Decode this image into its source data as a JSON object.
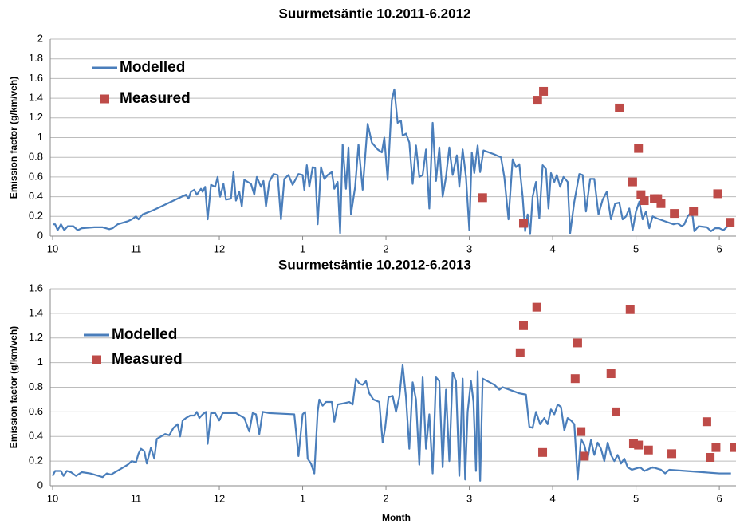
{
  "chart_data": [
    {
      "type": "line",
      "title": "Suurmetsäntie 10.2011-6.2012",
      "y_label": "Emission factor (g/km/veh)",
      "xlim": [
        0,
        8.2
      ],
      "xticks": [
        {
          "value": 0,
          "label": "10"
        },
        {
          "value": 1,
          "label": "11"
        },
        {
          "value": 2,
          "label": "12"
        },
        {
          "value": 3,
          "label": "1"
        },
        {
          "value": 4,
          "label": "2"
        },
        {
          "value": 5,
          "label": "3"
        },
        {
          "value": 6,
          "label": "4"
        },
        {
          "value": 7,
          "label": "5"
        },
        {
          "value": 8,
          "label": "6"
        }
      ],
      "ylim": [
        0,
        2
      ],
      "yticks": [
        0,
        0.2,
        0.4,
        0.6,
        0.8,
        1,
        1.2,
        1.4,
        1.6,
        1.8,
        2
      ],
      "grid": true,
      "legend": "upper left",
      "series": [
        {
          "name": "Modelled",
          "style": "line",
          "color": "#4a7ebb",
          "x": [
            0,
            0.03,
            0.06,
            0.1,
            0.14,
            0.18,
            0.25,
            0.3,
            0.35,
            0.5,
            0.6,
            0.68,
            0.72,
            0.78,
            0.9,
            0.95,
            1.0,
            1.03,
            1.08,
            1.2,
            1.3,
            1.45,
            1.6,
            1.63,
            1.66,
            1.7,
            1.73,
            1.78,
            1.8,
            1.83,
            1.86,
            1.9,
            1.95,
            1.98,
            2.01,
            2.05,
            2.08,
            2.14,
            2.17,
            2.2,
            2.24,
            2.27,
            2.3,
            2.38,
            2.42,
            2.45,
            2.5,
            2.53,
            2.56,
            2.6,
            2.65,
            2.7,
            2.74,
            2.78,
            2.83,
            2.88,
            2.95,
            3.0,
            3.02,
            3.05,
            3.08,
            3.12,
            3.15,
            3.18,
            3.22,
            3.26,
            3.3,
            3.35,
            3.38,
            3.42,
            3.45,
            3.48,
            3.52,
            3.55,
            3.58,
            3.63,
            3.67,
            3.72,
            3.78,
            3.83,
            3.9,
            3.95,
            3.98,
            4.02,
            4.07,
            4.1,
            4.14,
            4.18,
            4.2,
            4.24,
            4.28,
            4.32,
            4.36,
            4.4,
            4.44,
            4.48,
            4.52,
            4.56,
            4.6,
            4.64,
            4.68,
            4.72,
            4.76,
            4.8,
            4.85,
            4.88,
            4.92,
            4.96,
            5.0,
            5.03,
            5.06,
            5.1,
            5.13,
            5.17,
            5.3,
            5.38,
            5.42,
            5.47,
            5.52,
            5.56,
            5.6,
            5.64,
            5.67,
            5.7,
            5.73,
            5.76,
            5.8,
            5.84,
            5.88,
            5.92,
            5.95,
            5.98,
            6.02,
            6.05,
            6.09,
            6.13,
            6.18,
            6.21,
            6.26,
            6.32,
            6.36,
            6.4,
            6.45,
            6.5,
            6.55,
            6.6,
            6.65,
            6.7,
            6.75,
            6.8,
            6.84,
            6.88,
            6.92,
            6.96,
            7.0,
            7.04,
            7.08,
            7.12,
            7.16,
            7.2,
            7.25,
            7.35,
            7.45,
            7.5,
            7.55,
            7.58,
            7.62,
            7.65,
            7.68,
            7.7,
            7.75,
            7.85,
            7.9,
            7.95,
            8.0,
            8.05,
            8.1
          ],
          "values": [
            0.12,
            0.12,
            0.06,
            0.12,
            0.06,
            0.1,
            0.1,
            0.06,
            0.08,
            0.09,
            0.09,
            0.07,
            0.08,
            0.12,
            0.15,
            0.17,
            0.2,
            0.17,
            0.22,
            0.26,
            0.3,
            0.36,
            0.42,
            0.38,
            0.45,
            0.47,
            0.42,
            0.48,
            0.45,
            0.5,
            0.17,
            0.52,
            0.5,
            0.6,
            0.4,
            0.53,
            0.37,
            0.38,
            0.65,
            0.36,
            0.45,
            0.3,
            0.57,
            0.53,
            0.42,
            0.6,
            0.5,
            0.56,
            0.3,
            0.55,
            0.63,
            0.62,
            0.17,
            0.58,
            0.62,
            0.52,
            0.63,
            0.62,
            0.47,
            0.72,
            0.5,
            0.7,
            0.69,
            0.12,
            0.7,
            0.58,
            0.62,
            0.65,
            0.48,
            0.55,
            0.03,
            0.93,
            0.48,
            0.9,
            0.22,
            0.5,
            0.93,
            0.47,
            1.14,
            0.95,
            0.88,
            0.85,
            1.0,
            0.57,
            1.38,
            1.49,
            1.15,
            1.17,
            1.02,
            1.04,
            0.95,
            0.53,
            0.92,
            0.6,
            0.62,
            0.88,
            0.28,
            1.15,
            0.56,
            0.9,
            0.4,
            0.6,
            0.9,
            0.62,
            0.82,
            0.5,
            0.88,
            0.6,
            0.06,
            0.85,
            0.64,
            0.92,
            0.65,
            0.87,
            0.83,
            0.8,
            0.6,
            0.17,
            0.78,
            0.7,
            0.73,
            0.4,
            0.05,
            0.22,
            0.02,
            0.4,
            0.55,
            0.18,
            0.72,
            0.68,
            0.28,
            0.64,
            0.55,
            0.62,
            0.5,
            0.6,
            0.55,
            0.03,
            0.35,
            0.63,
            0.62,
            0.25,
            0.58,
            0.58,
            0.22,
            0.37,
            0.45,
            0.17,
            0.33,
            0.34,
            0.17,
            0.2,
            0.28,
            0.06,
            0.25,
            0.35,
            0.17,
            0.25,
            0.08,
            0.2,
            0.18,
            0.15,
            0.12,
            0.13,
            0.1,
            0.12,
            0.2,
            0.23,
            0.2,
            0.05,
            0.1,
            0.09,
            0.05,
            0.08,
            0.08,
            0.06,
            0.1
          ]
        },
        {
          "name": "Measured",
          "style": "markers",
          "color": "#be4b48",
          "x": [
            5.16,
            5.65,
            5.82,
            5.89,
            6.8,
            7.03,
            6.96,
            7.06,
            7.1,
            7.22,
            7.26,
            7.3,
            7.46,
            7.69,
            7.98,
            8.13
          ],
          "values": [
            0.39,
            0.13,
            1.38,
            1.47,
            1.3,
            0.89,
            0.55,
            0.42,
            0.36,
            0.38,
            0.38,
            0.33,
            0.23,
            0.25,
            0.43,
            0.14
          ]
        }
      ]
    },
    {
      "type": "line",
      "title": "Suurmetsäntie 10.2012-6.2013",
      "y_label": "Emission factor (g/km/veh)",
      "x_label": "Month",
      "xlim": [
        0,
        8.2
      ],
      "xticks": [
        {
          "value": 0,
          "label": "10"
        },
        {
          "value": 1,
          "label": "11"
        },
        {
          "value": 2,
          "label": "12"
        },
        {
          "value": 3,
          "label": "1"
        },
        {
          "value": 4,
          "label": "2"
        },
        {
          "value": 5,
          "label": "3"
        },
        {
          "value": 6,
          "label": "4"
        },
        {
          "value": 7,
          "label": "5"
        },
        {
          "value": 8,
          "label": "6"
        }
      ],
      "ylim": [
        0,
        1.6
      ],
      "yticks": [
        0,
        0.2,
        0.4,
        0.6,
        0.8,
        1,
        1.2,
        1.4,
        1.6
      ],
      "grid": true,
      "legend": "upper left",
      "series": [
        {
          "name": "Modelled",
          "style": "line",
          "color": "#4a7ebb",
          "x": [
            0,
            0.03,
            0.1,
            0.13,
            0.17,
            0.22,
            0.28,
            0.35,
            0.45,
            0.5,
            0.6,
            0.65,
            0.7,
            0.8,
            0.9,
            0.95,
            1.0,
            1.03,
            1.06,
            1.1,
            1.13,
            1.18,
            1.22,
            1.25,
            1.3,
            1.35,
            1.4,
            1.45,
            1.5,
            1.53,
            1.56,
            1.6,
            1.65,
            1.7,
            1.73,
            1.76,
            1.8,
            1.84,
            1.86,
            1.9,
            1.95,
            2.0,
            2.04,
            2.2,
            2.3,
            2.36,
            2.4,
            2.44,
            2.48,
            2.52,
            2.6,
            2.9,
            2.95,
            3.0,
            3.03,
            3.06,
            3.1,
            3.14,
            3.18,
            3.2,
            3.24,
            3.28,
            3.35,
            3.38,
            3.42,
            3.5,
            3.56,
            3.6,
            3.64,
            3.68,
            3.72,
            3.76,
            3.8,
            3.85,
            3.92,
            3.96,
            3.99,
            4.03,
            4.08,
            4.12,
            4.16,
            4.2,
            4.24,
            4.28,
            4.32,
            4.36,
            4.4,
            4.44,
            4.48,
            4.52,
            4.56,
            4.6,
            4.64,
            4.68,
            4.72,
            4.76,
            4.8,
            4.84,
            4.88,
            4.92,
            4.95,
            4.98,
            5.02,
            5.05,
            5.08,
            5.1,
            5.13,
            5.16,
            5.3,
            5.36,
            5.4,
            5.6,
            5.68,
            5.72,
            5.76,
            5.8,
            5.85,
            5.9,
            5.94,
            5.98,
            6.02,
            6.06,
            6.1,
            6.14,
            6.18,
            6.22,
            6.26,
            6.3,
            6.34,
            6.38,
            6.42,
            6.46,
            6.5,
            6.54,
            6.58,
            6.62,
            6.66,
            6.7,
            6.74,
            6.78,
            6.82,
            6.86,
            6.9,
            6.95,
            7.05,
            7.1,
            7.2,
            7.3,
            7.35,
            7.4,
            7.6,
            7.8,
            8.0,
            8.14
          ],
          "values": [
            0.08,
            0.12,
            0.12,
            0.08,
            0.12,
            0.11,
            0.08,
            0.11,
            0.1,
            0.09,
            0.07,
            0.1,
            0.09,
            0.13,
            0.17,
            0.2,
            0.19,
            0.26,
            0.3,
            0.28,
            0.18,
            0.31,
            0.22,
            0.38,
            0.4,
            0.42,
            0.41,
            0.47,
            0.5,
            0.4,
            0.53,
            0.55,
            0.57,
            0.57,
            0.6,
            0.55,
            0.58,
            0.6,
            0.34,
            0.59,
            0.59,
            0.53,
            0.59,
            0.59,
            0.55,
            0.44,
            0.59,
            0.58,
            0.42,
            0.6,
            0.59,
            0.58,
            0.24,
            0.58,
            0.6,
            0.22,
            0.18,
            0.1,
            0.6,
            0.7,
            0.65,
            0.68,
            0.68,
            0.52,
            0.66,
            0.67,
            0.68,
            0.66,
            0.87,
            0.83,
            0.82,
            0.85,
            0.75,
            0.7,
            0.68,
            0.35,
            0.47,
            0.72,
            0.73,
            0.6,
            0.72,
            0.98,
            0.72,
            0.3,
            0.84,
            0.7,
            0.17,
            0.88,
            0.3,
            0.58,
            0.1,
            0.88,
            0.85,
            0.15,
            0.78,
            0.2,
            0.92,
            0.85,
            0.08,
            0.87,
            0.05,
            0.6,
            0.85,
            0.68,
            0.12,
            0.93,
            0.04,
            0.87,
            0.82,
            0.78,
            0.8,
            0.75,
            0.74,
            0.48,
            0.47,
            0.6,
            0.5,
            0.55,
            0.5,
            0.62,
            0.58,
            0.66,
            0.64,
            0.45,
            0.55,
            0.53,
            0.5,
            0.05,
            0.38,
            0.33,
            0.22,
            0.37,
            0.25,
            0.35,
            0.3,
            0.2,
            0.35,
            0.25,
            0.2,
            0.25,
            0.18,
            0.22,
            0.15,
            0.13,
            0.15,
            0.12,
            0.15,
            0.13,
            0.1,
            0.13,
            0.12,
            0.11,
            0.1,
            0.1
          ]
        },
        {
          "name": "Measured",
          "style": "markers",
          "color": "#be4b48",
          "x": [
            5.61,
            5.65,
            5.81,
            5.88,
            6.27,
            6.3,
            6.34,
            6.38,
            6.7,
            6.76,
            6.93,
            6.97,
            7.03,
            7.15,
            7.43,
            7.85,
            7.89,
            7.96,
            8.18
          ],
          "values": [
            1.08,
            1.3,
            1.45,
            0.27,
            0.87,
            1.16,
            0.44,
            0.24,
            0.91,
            0.6,
            1.43,
            0.34,
            0.33,
            0.29,
            0.26,
            0.52,
            0.23,
            0.31,
            0.31
          ]
        }
      ]
    }
  ]
}
